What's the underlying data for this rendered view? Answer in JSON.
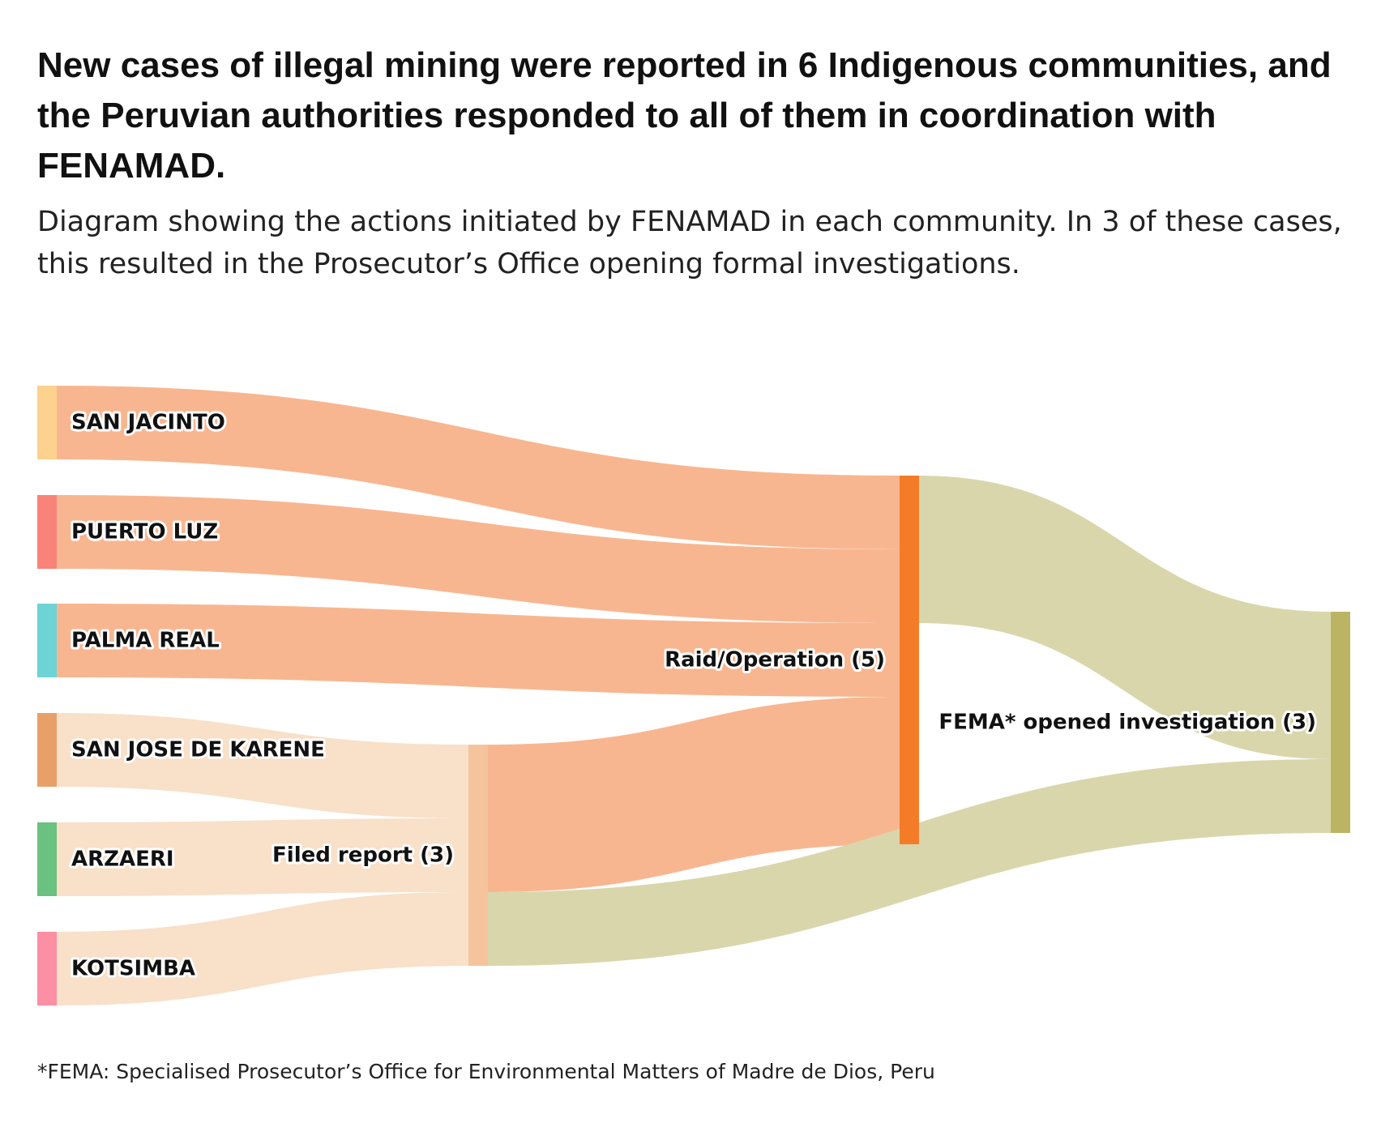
{
  "header": {
    "title": "New cases of illegal mining were reported in 6 Indigenous communities, and the Peruvian authorities responded to all of them in coordination with FENAMAD.",
    "subtitle": "Diagram showing the actions initiated by FENAMAD in each community. In 3 of these cases, this resulted in the Prosecutor’s Office opening formal investigations."
  },
  "chart_data": {
    "type": "sankey",
    "nodes": [
      {
        "id": "san_jacinto",
        "label": "SAN JACINTO",
        "column": 0,
        "color": "#fdd18e"
      },
      {
        "id": "puerto_luz",
        "label": "PUERTO LUZ",
        "column": 0,
        "color": "#f98379"
      },
      {
        "id": "palma_real",
        "label": "PALMA REAL",
        "column": 0,
        "color": "#6dd3d5"
      },
      {
        "id": "san_jose_de_karene",
        "label": "SAN JOSE DE KARENE",
        "column": 0,
        "color": "#e8a068"
      },
      {
        "id": "arzaeri",
        "label": "ARZAERI",
        "column": 0,
        "color": "#6bc17f"
      },
      {
        "id": "kotsimba",
        "label": "KOTSIMBA",
        "column": 0,
        "color": "#fb8fa4"
      },
      {
        "id": "filed_report",
        "label": "Filed report (3)",
        "column": 1,
        "color": "#f5c49c"
      },
      {
        "id": "raid_operation",
        "label": "Raid/Operation (5)",
        "column": 2,
        "color": "#f47c28"
      },
      {
        "id": "fema",
        "label": "FEMA* opened investigation (3)",
        "column": 3,
        "color": "#bbb462"
      }
    ],
    "links": [
      {
        "source": "san_jacinto",
        "target": "raid_operation",
        "value": 1,
        "color": "#f8b690"
      },
      {
        "source": "puerto_luz",
        "target": "raid_operation",
        "value": 1,
        "color": "#f8b690"
      },
      {
        "source": "palma_real",
        "target": "raid_operation",
        "value": 1,
        "color": "#f8b690"
      },
      {
        "source": "san_jose_de_karene",
        "target": "filed_report",
        "value": 1,
        "color": "#f8e0c9"
      },
      {
        "source": "arzaeri",
        "target": "filed_report",
        "value": 1,
        "color": "#f8e0c9"
      },
      {
        "source": "kotsimba",
        "target": "filed_report",
        "value": 1,
        "color": "#f8e0c9"
      },
      {
        "source": "filed_report",
        "target": "raid_operation",
        "value": 2,
        "color": "#f8b690"
      },
      {
        "source": "filed_report",
        "target": "fema",
        "value": 1,
        "color": "#dad6ac"
      },
      {
        "source": "raid_operation",
        "target": "fema",
        "value": 2,
        "color": "#dad6ac"
      }
    ]
  },
  "footnote": "*FEMA: Specialised Prosecutor’s Office for Environmental Matters of Madre de Dios, Peru"
}
